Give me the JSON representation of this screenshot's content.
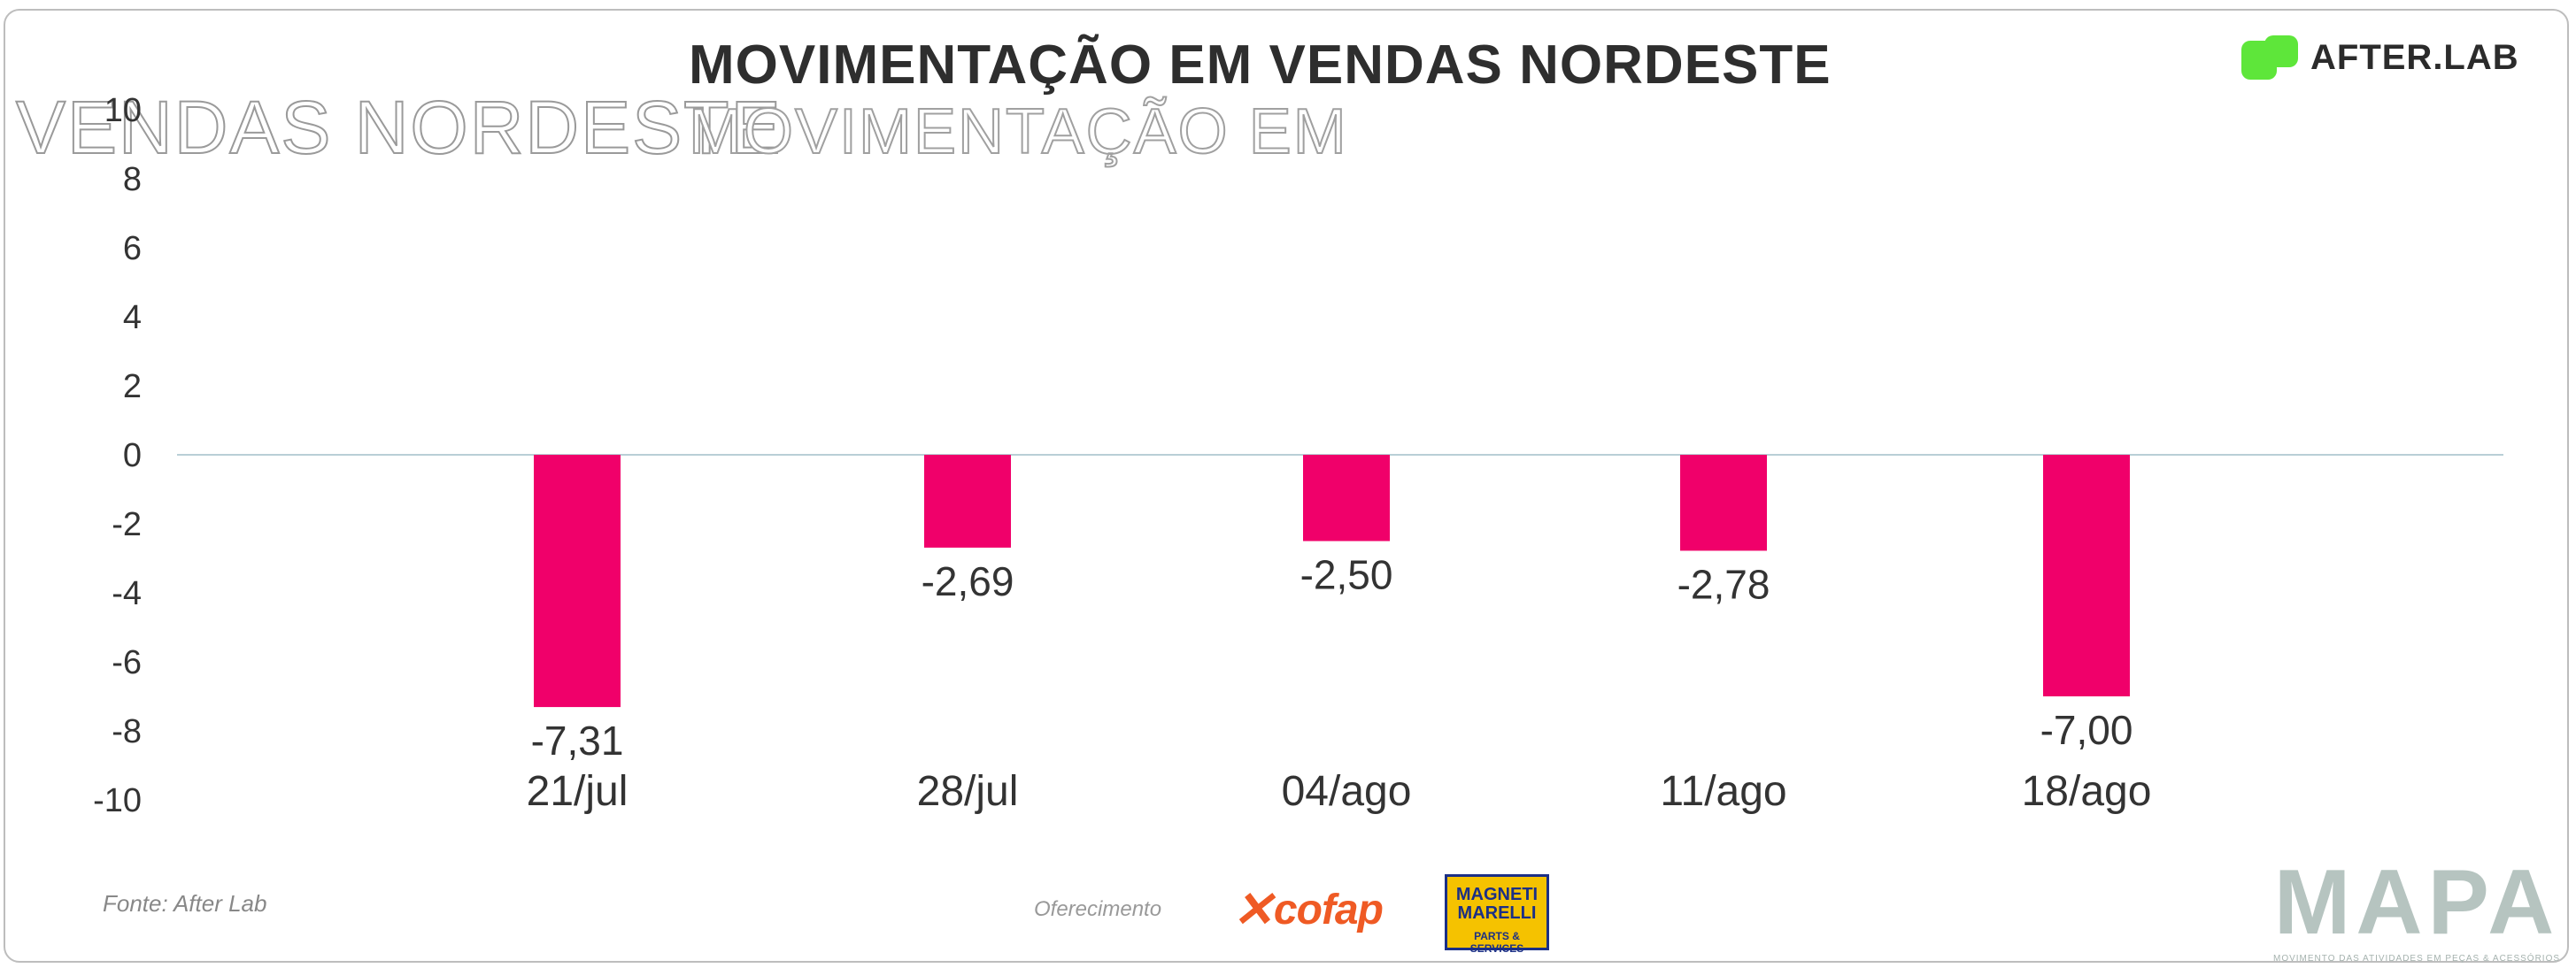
{
  "header": {
    "title": "MOVIMENTAÇÃO EM VENDAS NORDESTE",
    "ghost_left": "VENDAS NORDESTE",
    "ghost_right": "MOVIMENTAÇÃO EM"
  },
  "logo": {
    "name": "AFTER.LAB",
    "color": "#5ee63a"
  },
  "footer": {
    "source": "Fonte: After Lab",
    "sponsor_label": "Oferecimento",
    "sponsor_1": "cofap",
    "sponsor_2_line1": "MAGNETI",
    "sponsor_2_line2": "MARELLI",
    "sponsor_2_sub": "PARTS & SERVICES",
    "brand": "MAPA",
    "brand_tagline": "MOVIMENTO DAS ATIVIDADES EM PEÇAS & ACESSÓRIOS"
  },
  "colors": {
    "bar": "#f0006a",
    "zero_line": "#b9cfd6",
    "text": "#333333"
  },
  "chart_data": {
    "type": "bar",
    "title": "MOVIMENTAÇÃO EM VENDAS NORDESTE",
    "categories": [
      "21/jul",
      "28/jul",
      "04/ago",
      "11/ago",
      "18/ago"
    ],
    "values": [
      -7.31,
      -2.69,
      -2.5,
      -2.78,
      -7.0
    ],
    "value_labels": [
      "-7,31",
      "-2,69",
      "-2,50",
      "-2,78",
      "-7,00"
    ],
    "ylim": [
      -10,
      10
    ],
    "yticks": [
      10,
      8,
      6,
      4,
      2,
      0,
      -2,
      -4,
      -6,
      -8,
      -10
    ],
    "grid": false,
    "legend": "none"
  }
}
